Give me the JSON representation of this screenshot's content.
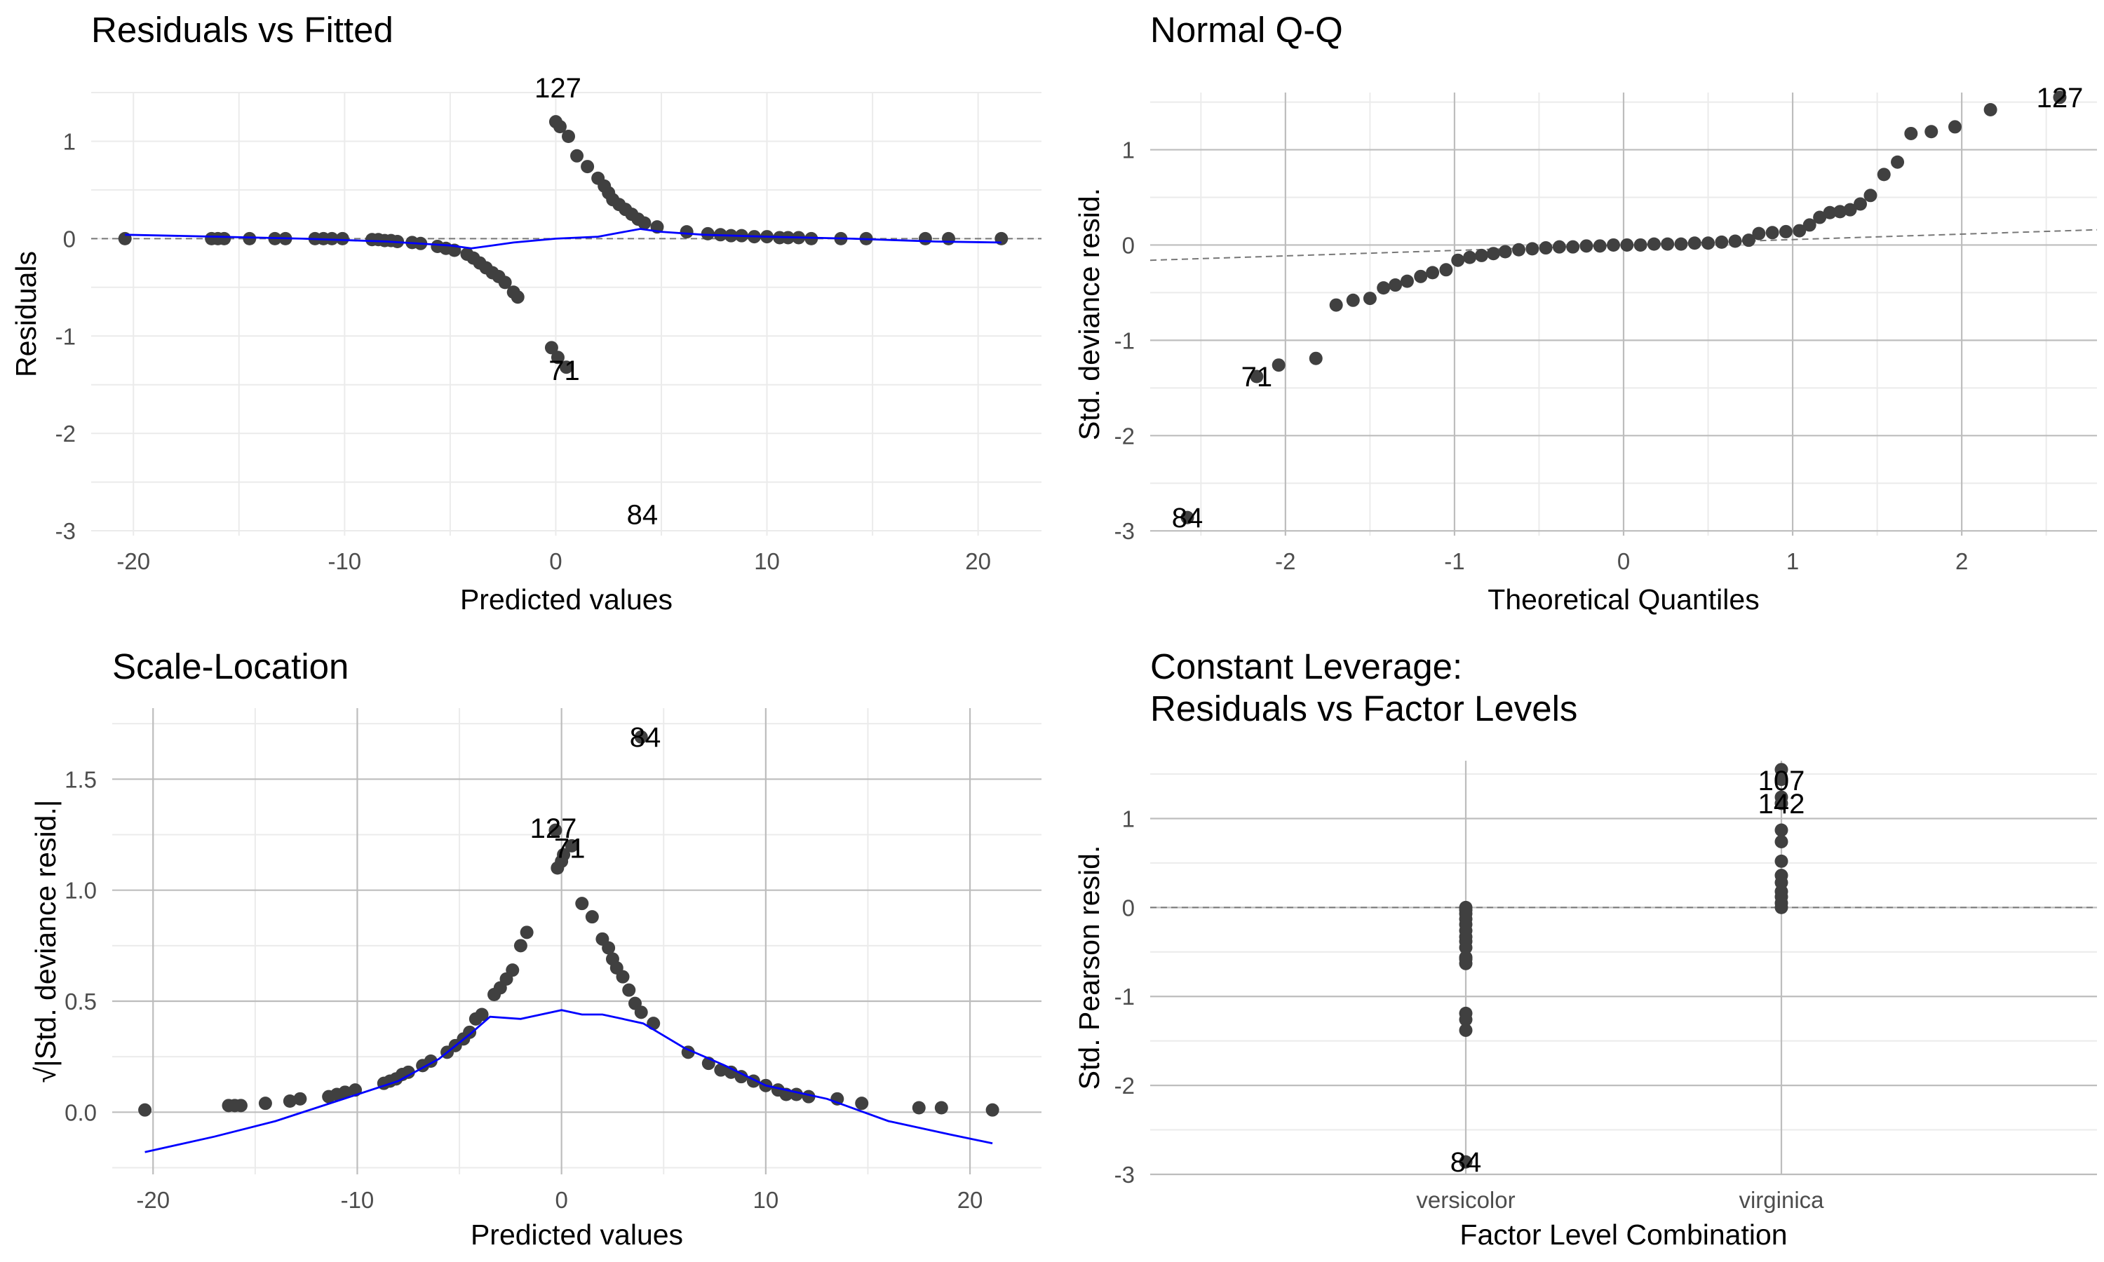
{
  "chart_data": [
    {
      "id": "rvf",
      "type": "scatter",
      "title": [
        "Residuals vs Fitted"
      ],
      "xlabel": "Predicted values",
      "ylabel": "Residuals",
      "xlim": [
        -22,
        23
      ],
      "ylim": [
        -3.05,
        1.5
      ],
      "xticks": [
        -20,
        -10,
        0,
        10,
        20
      ],
      "yticks": [
        1,
        0,
        -1,
        -2,
        -3
      ],
      "grid": "dark-major-light-minor",
      "ref_line": {
        "type": "hline",
        "y": 0
      },
      "points": [
        [
          -20.4,
          0
        ],
        [
          -16.3,
          0
        ],
        [
          -16.0,
          0
        ],
        [
          -15.7,
          0
        ],
        [
          -14.5,
          0
        ],
        [
          -13.3,
          0
        ],
        [
          -12.8,
          0
        ],
        [
          -11.4,
          0
        ],
        [
          -11.0,
          0
        ],
        [
          -10.6,
          0
        ],
        [
          -10.1,
          0
        ],
        [
          -8.7,
          -0.01
        ],
        [
          -8.4,
          -0.01
        ],
        [
          -8.1,
          -0.02
        ],
        [
          -7.8,
          -0.02
        ],
        [
          -7.5,
          -0.03
        ],
        [
          -6.8,
          -0.04
        ],
        [
          -6.4,
          -0.05
        ],
        [
          -5.6,
          -0.08
        ],
        [
          -5.2,
          -0.1
        ],
        [
          -4.8,
          -0.12
        ],
        [
          -4.2,
          -0.16
        ],
        [
          -3.9,
          -0.2
        ],
        [
          -3.6,
          -0.25
        ],
        [
          -3.3,
          -0.3
        ],
        [
          -3.0,
          -0.35
        ],
        [
          -2.7,
          -0.39
        ],
        [
          -2.4,
          -0.45
        ],
        [
          -2.0,
          -0.55
        ],
        [
          -1.8,
          -0.6
        ],
        [
          -0.2,
          -1.12
        ],
        [
          0.1,
          -1.22
        ],
        [
          0.5,
          -1.32
        ],
        [
          0.0,
          1.2
        ],
        [
          0.2,
          1.15
        ],
        [
          0.6,
          1.05
        ],
        [
          1.0,
          0.85
        ],
        [
          1.5,
          0.74
        ],
        [
          2.0,
          0.62
        ],
        [
          2.3,
          0.54
        ],
        [
          2.5,
          0.47
        ],
        [
          2.7,
          0.4
        ],
        [
          3.0,
          0.35
        ],
        [
          3.3,
          0.3
        ],
        [
          3.6,
          0.25
        ],
        [
          3.9,
          0.2
        ],
        [
          4.2,
          0.16
        ],
        [
          4.8,
          0.12
        ],
        [
          6.2,
          0.07
        ],
        [
          7.2,
          0.05
        ],
        [
          7.8,
          0.04
        ],
        [
          8.3,
          0.03
        ],
        [
          8.8,
          0.03
        ],
        [
          9.4,
          0.02
        ],
        [
          10.0,
          0.02
        ],
        [
          10.6,
          0.01
        ],
        [
          11.0,
          0.01
        ],
        [
          11.5,
          0.01
        ],
        [
          12.1,
          0
        ],
        [
          13.5,
          0
        ],
        [
          14.7,
          0
        ],
        [
          17.5,
          0
        ],
        [
          18.6,
          0
        ],
        [
          21.1,
          0
        ]
      ],
      "labels": [
        {
          "text": "127",
          "x": 0.1,
          "y": 1.55
        },
        {
          "text": "71",
          "x": 0.4,
          "y": -1.35
        },
        {
          "text": "84",
          "x": 4.1,
          "y": -2.83
        }
      ],
      "smooth": [
        [
          -20.4,
          0.04
        ],
        [
          -16,
          0.02
        ],
        [
          -12,
          0.0
        ],
        [
          -8,
          -0.03
        ],
        [
          -5,
          -0.07
        ],
        [
          -4,
          -0.1
        ],
        [
          -3,
          -0.07
        ],
        [
          -2,
          -0.04
        ],
        [
          -1,
          -0.02
        ],
        [
          0,
          0.0
        ],
        [
          1,
          0.01
        ],
        [
          2,
          0.02
        ],
        [
          3,
          0.06
        ],
        [
          4,
          0.1
        ],
        [
          5,
          0.07
        ],
        [
          7,
          0.04
        ],
        [
          10,
          0.02
        ],
        [
          14,
          0.0
        ],
        [
          18,
          -0.03
        ],
        [
          21.1,
          -0.04
        ]
      ]
    },
    {
      "id": "qq",
      "type": "scatter",
      "title": [
        "Normal Q-Q"
      ],
      "xlabel": "Theoretical Quantiles",
      "ylabel": "Std. deviance resid.",
      "xlim": [
        -2.8,
        2.8
      ],
      "ylim": [
        -3.05,
        1.6
      ],
      "xticks": [
        -2,
        -1,
        0,
        1,
        2
      ],
      "yticks": [
        1,
        0,
        -1,
        -2,
        -3
      ],
      "grid": "dark-major-light-minor",
      "ref_line": {
        "type": "line",
        "from": [
          -2.8,
          -0.16
        ],
        "to": [
          2.8,
          0.16
        ]
      },
      "points": [
        [
          -2.58,
          -2.86
        ],
        [
          -2.17,
          -1.38
        ],
        [
          -2.04,
          -1.26
        ],
        [
          -1.82,
          -1.19
        ],
        [
          -1.7,
          -0.63
        ],
        [
          -1.6,
          -0.58
        ],
        [
          -1.5,
          -0.56
        ],
        [
          -1.42,
          -0.45
        ],
        [
          -1.35,
          -0.42
        ],
        [
          -1.28,
          -0.38
        ],
        [
          -1.2,
          -0.33
        ],
        [
          -1.13,
          -0.29
        ],
        [
          -1.05,
          -0.26
        ],
        [
          -0.98,
          -0.16
        ],
        [
          -0.91,
          -0.13
        ],
        [
          -0.84,
          -0.11
        ],
        [
          -0.77,
          -0.09
        ],
        [
          -0.7,
          -0.07
        ],
        [
          -0.62,
          -0.05
        ],
        [
          -0.54,
          -0.04
        ],
        [
          -0.46,
          -0.03
        ],
        [
          -0.38,
          -0.02
        ],
        [
          -0.3,
          -0.02
        ],
        [
          -0.22,
          -0.01
        ],
        [
          -0.14,
          -0.01
        ],
        [
          -0.06,
          0
        ],
        [
          0.02,
          0
        ],
        [
          0.1,
          0
        ],
        [
          0.18,
          0.01
        ],
        [
          0.26,
          0.01
        ],
        [
          0.34,
          0.01
        ],
        [
          0.42,
          0.02
        ],
        [
          0.5,
          0.02
        ],
        [
          0.58,
          0.03
        ],
        [
          0.66,
          0.04
        ],
        [
          0.74,
          0.05
        ],
        [
          0.8,
          0.12
        ],
        [
          0.88,
          0.13
        ],
        [
          0.96,
          0.14
        ],
        [
          1.04,
          0.15
        ],
        [
          1.1,
          0.21
        ],
        [
          1.16,
          0.29
        ],
        [
          1.22,
          0.34
        ],
        [
          1.28,
          0.35
        ],
        [
          1.34,
          0.37
        ],
        [
          1.4,
          0.43
        ],
        [
          1.46,
          0.52
        ],
        [
          1.54,
          0.74
        ],
        [
          1.62,
          0.87
        ],
        [
          1.7,
          1.17
        ],
        [
          1.82,
          1.19
        ],
        [
          1.96,
          1.24
        ],
        [
          2.17,
          1.42
        ],
        [
          2.58,
          1.55
        ]
      ],
      "labels": [
        {
          "text": "127",
          "x": 2.58,
          "y": 1.55
        },
        {
          "text": "71",
          "x": -2.17,
          "y": -1.38
        },
        {
          "text": "84",
          "x": -2.58,
          "y": -2.86
        }
      ]
    },
    {
      "id": "sl",
      "type": "scatter",
      "title": [
        "Scale-Location"
      ],
      "xlabel": "Predicted values",
      "ylabel": "√|Std. deviance resid.|",
      "xlim": [
        -22,
        23.5
      ],
      "ylim": [
        -0.28,
        1.82
      ],
      "xticks": [
        -20,
        -10,
        0,
        10,
        20
      ],
      "yticks": [
        1.5,
        1.0,
        0.5,
        0.0
      ],
      "grid": "dark-major-light-minor",
      "points": [
        [
          -20.4,
          0.01
        ],
        [
          -16.3,
          0.03
        ],
        [
          -16.0,
          0.03
        ],
        [
          -15.7,
          0.03
        ],
        [
          -14.5,
          0.04
        ],
        [
          -13.3,
          0.05
        ],
        [
          -12.8,
          0.06
        ],
        [
          -11.4,
          0.07
        ],
        [
          -11.0,
          0.08
        ],
        [
          -10.6,
          0.09
        ],
        [
          -10.1,
          0.1
        ],
        [
          -8.7,
          0.13
        ],
        [
          -8.4,
          0.14
        ],
        [
          -8.1,
          0.15
        ],
        [
          -7.8,
          0.17
        ],
        [
          -7.5,
          0.18
        ],
        [
          -6.8,
          0.21
        ],
        [
          -6.4,
          0.23
        ],
        [
          -5.6,
          0.27
        ],
        [
          -5.2,
          0.3
        ],
        [
          -4.8,
          0.33
        ],
        [
          -4.5,
          0.36
        ],
        [
          -4.2,
          0.42
        ],
        [
          -3.9,
          0.44
        ],
        [
          -3.3,
          0.53
        ],
        [
          -3.0,
          0.56
        ],
        [
          -2.7,
          0.6
        ],
        [
          -2.4,
          0.64
        ],
        [
          -2.0,
          0.75
        ],
        [
          -1.7,
          0.81
        ],
        [
          -0.2,
          1.1
        ],
        [
          0.1,
          1.16
        ],
        [
          0.5,
          1.2
        ],
        [
          -0.3,
          1.27
        ],
        [
          0.0,
          1.13
        ],
        [
          1.0,
          0.94
        ],
        [
          1.5,
          0.88
        ],
        [
          2.0,
          0.78
        ],
        [
          2.3,
          0.74
        ],
        [
          2.5,
          0.69
        ],
        [
          2.7,
          0.65
        ],
        [
          3.0,
          0.61
        ],
        [
          3.3,
          0.55
        ],
        [
          3.6,
          0.49
        ],
        [
          3.9,
          0.45
        ],
        [
          4.5,
          0.4
        ],
        [
          6.2,
          0.27
        ],
        [
          7.2,
          0.22
        ],
        [
          7.8,
          0.19
        ],
        [
          8.3,
          0.18
        ],
        [
          8.8,
          0.16
        ],
        [
          9.4,
          0.14
        ],
        [
          10.0,
          0.12
        ],
        [
          10.6,
          0.1
        ],
        [
          11.0,
          0.08
        ],
        [
          11.5,
          0.08
        ],
        [
          12.1,
          0.07
        ],
        [
          13.5,
          0.06
        ],
        [
          14.7,
          0.04
        ],
        [
          17.5,
          0.02
        ],
        [
          18.6,
          0.02
        ],
        [
          21.1,
          0.01
        ],
        [
          3.9,
          1.69
        ]
      ],
      "labels": [
        {
          "text": "84",
          "x": 4.1,
          "y": 1.69
        },
        {
          "text": "127",
          "x": -0.4,
          "y": 1.28
        },
        {
          "text": "71",
          "x": 0.4,
          "y": 1.19
        }
      ],
      "smooth": [
        [
          -20.4,
          -0.18
        ],
        [
          -17,
          -0.11
        ],
        [
          -14,
          -0.04
        ],
        [
          -11,
          0.05
        ],
        [
          -8,
          0.14
        ],
        [
          -6,
          0.24
        ],
        [
          -4.5,
          0.35
        ],
        [
          -3.5,
          0.43
        ],
        [
          -2,
          0.42
        ],
        [
          -1,
          0.44
        ],
        [
          0,
          0.46
        ],
        [
          1,
          0.44
        ],
        [
          2,
          0.44
        ],
        [
          3,
          0.42
        ],
        [
          4,
          0.4
        ],
        [
          6,
          0.29
        ],
        [
          8,
          0.21
        ],
        [
          10,
          0.12
        ],
        [
          13,
          0.06
        ],
        [
          16,
          -0.04
        ],
        [
          19,
          -0.1
        ],
        [
          21.1,
          -0.14
        ]
      ]
    },
    {
      "id": "cl",
      "type": "scatter",
      "title": [
        "Constant Leverage:",
        "Residuals vs Factor Levels"
      ],
      "xlabel": "Factor Level Combination",
      "ylabel": "Std. Pearson resid.",
      "xlim": [
        0,
        3
      ],
      "ylim": [
        -3.0,
        1.65
      ],
      "categories": [
        "versicolor",
        "virginica"
      ],
      "xticks": [
        1,
        2
      ],
      "yticks": [
        1,
        0,
        -1,
        -2,
        -3
      ],
      "grid": "dark-major-light-minor",
      "ref_line": {
        "type": "hline",
        "y": 0
      },
      "points": [
        [
          1,
          -2.86
        ],
        [
          1,
          -1.38
        ],
        [
          1,
          -1.26
        ],
        [
          1,
          -1.19
        ],
        [
          1,
          -0.63
        ],
        [
          1,
          -0.58
        ],
        [
          1,
          -0.56
        ],
        [
          1,
          -0.45
        ],
        [
          1,
          -0.38
        ],
        [
          1,
          -0.33
        ],
        [
          1,
          -0.26
        ],
        [
          1,
          -0.19
        ],
        [
          1,
          -0.13
        ],
        [
          1,
          -0.07
        ],
        [
          1,
          -0.03
        ],
        [
          1,
          0
        ],
        [
          2,
          0
        ],
        [
          2,
          0.05
        ],
        [
          2,
          0.12
        ],
        [
          2,
          0.18
        ],
        [
          2,
          0.28
        ],
        [
          2,
          0.36
        ],
        [
          2,
          0.52
        ],
        [
          2,
          0.74
        ],
        [
          2,
          0.87
        ],
        [
          2,
          1.17
        ],
        [
          2,
          1.24
        ],
        [
          2,
          1.44
        ],
        [
          2,
          1.55
        ]
      ],
      "labels": [
        {
          "text": "107",
          "x": 2,
          "y": 1.43
        },
        {
          "text": "142",
          "x": 2,
          "y": 1.17
        },
        {
          "text": "84",
          "x": 1,
          "y": -2.86
        }
      ]
    }
  ]
}
